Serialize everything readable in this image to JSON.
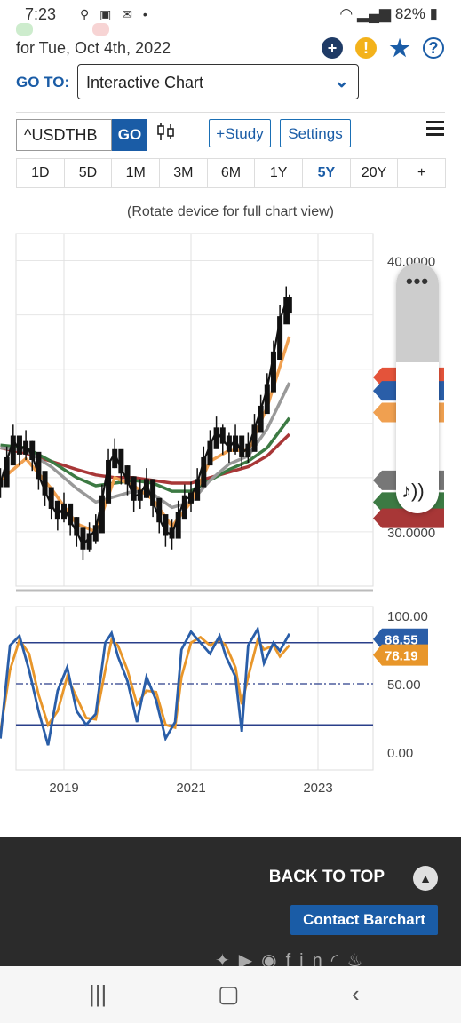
{
  "status_bar": {
    "time": "7:23",
    "battery": "82%"
  },
  "header": {
    "date": "for Tue, Oct 4th, 2022",
    "goto_label": "GO TO:",
    "goto_value": "Interactive Chart"
  },
  "toolbar": {
    "symbol": "^USDTHB",
    "go_label": "GO",
    "study_label": "+Study",
    "settings_label": "Settings"
  },
  "ranges": [
    "1D",
    "5D",
    "1M",
    "3M",
    "6M",
    "1Y",
    "5Y",
    "20Y",
    "+"
  ],
  "active_range": "5Y",
  "rotate_hint": "(Rotate device for full chart view)",
  "chart_data": {
    "type": "line",
    "price_axis": {
      "ticks": [
        "40.0000",
        "30.0000"
      ],
      "ylim": [
        28.0,
        41.0
      ]
    },
    "osc_axis": {
      "ticks": [
        "100.00",
        "50.00",
        "0.00"
      ],
      "ylim": [
        0,
        100
      ]
    },
    "x_ticks": [
      "2019",
      "2021",
      "2023"
    ],
    "osc_labels": [
      "86.55",
      "78.19"
    ],
    "colors": {
      "price": "#111111",
      "ma_orange": "#f0a050",
      "ma_grey": "#999999",
      "ma_green": "#3c7a43",
      "ma_red": "#a83737",
      "osc_blue": "#2a5ea8",
      "osc_orange": "#e8962a"
    },
    "price_series": [
      [
        2018.0,
        31.8
      ],
      [
        2018.1,
        32.6
      ],
      [
        2018.2,
        33.4
      ],
      [
        2018.3,
        33.0
      ],
      [
        2018.4,
        33.2
      ],
      [
        2018.5,
        32.8
      ],
      [
        2018.6,
        32.1
      ],
      [
        2018.7,
        31.5
      ],
      [
        2018.8,
        31.0
      ],
      [
        2018.9,
        30.6
      ],
      [
        2019.0,
        30.9
      ],
      [
        2019.1,
        30.4
      ],
      [
        2019.2,
        30.0
      ],
      [
        2019.3,
        29.5
      ],
      [
        2019.4,
        29.8
      ],
      [
        2019.5,
        30.1
      ],
      [
        2019.6,
        31.2
      ],
      [
        2019.7,
        32.5
      ],
      [
        2019.8,
        32.9
      ],
      [
        2019.9,
        32.3
      ],
      [
        2020.0,
        31.9
      ],
      [
        2020.1,
        31.3
      ],
      [
        2020.2,
        31.4
      ],
      [
        2020.3,
        31.8
      ],
      [
        2020.4,
        31.1
      ],
      [
        2020.5,
        30.5
      ],
      [
        2020.6,
        30.0
      ],
      [
        2020.7,
        29.9
      ],
      [
        2020.8,
        30.6
      ],
      [
        2020.9,
        31.2
      ],
      [
        2021.0,
        31.3
      ],
      [
        2021.1,
        31.8
      ],
      [
        2021.2,
        32.6
      ],
      [
        2021.3,
        33.2
      ],
      [
        2021.4,
        33.7
      ],
      [
        2021.5,
        33.4
      ],
      [
        2021.6,
        33.1
      ],
      [
        2021.7,
        33.4
      ],
      [
        2021.8,
        32.9
      ],
      [
        2021.9,
        33.1
      ],
      [
        2022.0,
        33.8
      ],
      [
        2022.1,
        34.5
      ],
      [
        2022.2,
        35.3
      ],
      [
        2022.3,
        36.5
      ],
      [
        2022.4,
        37.8
      ],
      [
        2022.5,
        38.5
      ],
      [
        2022.55,
        38.2
      ]
    ],
    "ma_orange": [
      [
        2018.0,
        31.9
      ],
      [
        2018.4,
        32.7
      ],
      [
        2018.8,
        31.6
      ],
      [
        2019.2,
        30.3
      ],
      [
        2019.5,
        30.0
      ],
      [
        2019.8,
        32.0
      ],
      [
        2020.1,
        31.7
      ],
      [
        2020.4,
        31.2
      ],
      [
        2020.7,
        30.2
      ],
      [
        2021.0,
        31.1
      ],
      [
        2021.3,
        32.6
      ],
      [
        2021.6,
        33.0
      ],
      [
        2021.9,
        33.0
      ],
      [
        2022.2,
        34.6
      ],
      [
        2022.55,
        37.2
      ]
    ],
    "ma_grey": [
      [
        2018.0,
        33.1
      ],
      [
        2018.4,
        33.0
      ],
      [
        2018.8,
        32.4
      ],
      [
        2019.2,
        31.6
      ],
      [
        2019.5,
        31.1
      ],
      [
        2019.8,
        31.3
      ],
      [
        2020.1,
        31.5
      ],
      [
        2020.4,
        31.4
      ],
      [
        2020.7,
        30.9
      ],
      [
        2021.0,
        31.1
      ],
      [
        2021.3,
        31.9
      ],
      [
        2021.6,
        32.5
      ],
      [
        2021.9,
        32.8
      ],
      [
        2022.2,
        33.8
      ],
      [
        2022.55,
        35.5
      ]
    ],
    "ma_green": [
      [
        2018.0,
        33.2
      ],
      [
        2018.4,
        33.1
      ],
      [
        2018.8,
        32.6
      ],
      [
        2019.2,
        32.0
      ],
      [
        2019.5,
        31.7
      ],
      [
        2019.8,
        31.8
      ],
      [
        2020.1,
        31.9
      ],
      [
        2020.4,
        31.8
      ],
      [
        2020.7,
        31.5
      ],
      [
        2021.0,
        31.5
      ],
      [
        2021.3,
        31.9
      ],
      [
        2021.6,
        32.3
      ],
      [
        2021.9,
        32.6
      ],
      [
        2022.2,
        33.1
      ],
      [
        2022.55,
        34.2
      ]
    ],
    "ma_red": [
      [
        2018.0,
        33.1
      ],
      [
        2018.4,
        32.9
      ],
      [
        2018.8,
        32.6
      ],
      [
        2019.2,
        32.3
      ],
      [
        2019.5,
        32.1
      ],
      [
        2019.8,
        32.0
      ],
      [
        2020.1,
        32.0
      ],
      [
        2020.4,
        31.9
      ],
      [
        2020.7,
        31.8
      ],
      [
        2021.0,
        31.8
      ],
      [
        2021.3,
        32.0
      ],
      [
        2021.6,
        32.2
      ],
      [
        2021.9,
        32.4
      ],
      [
        2022.2,
        32.8
      ],
      [
        2022.55,
        33.6
      ]
    ],
    "osc_blue": [
      [
        2018.0,
        10
      ],
      [
        2018.15,
        78
      ],
      [
        2018.3,
        85
      ],
      [
        2018.45,
        60
      ],
      [
        2018.6,
        30
      ],
      [
        2018.75,
        5
      ],
      [
        2018.9,
        45
      ],
      [
        2019.05,
        62
      ],
      [
        2019.2,
        30
      ],
      [
        2019.35,
        20
      ],
      [
        2019.5,
        28
      ],
      [
        2019.65,
        80
      ],
      [
        2019.75,
        87
      ],
      [
        2019.85,
        70
      ],
      [
        2020.0,
        52
      ],
      [
        2020.15,
        22
      ],
      [
        2020.3,
        55
      ],
      [
        2020.45,
        38
      ],
      [
        2020.6,
        10
      ],
      [
        2020.75,
        22
      ],
      [
        2020.85,
        75
      ],
      [
        2021.0,
        88
      ],
      [
        2021.15,
        80
      ],
      [
        2021.3,
        72
      ],
      [
        2021.45,
        85
      ],
      [
        2021.55,
        70
      ],
      [
        2021.7,
        55
      ],
      [
        2021.8,
        15
      ],
      [
        2021.9,
        78
      ],
      [
        2022.05,
        90
      ],
      [
        2022.15,
        65
      ],
      [
        2022.3,
        80
      ],
      [
        2022.4,
        74
      ],
      [
        2022.55,
        86.55
      ]
    ],
    "osc_orange": [
      [
        2018.0,
        15
      ],
      [
        2018.15,
        60
      ],
      [
        2018.3,
        82
      ],
      [
        2018.45,
        72
      ],
      [
        2018.6,
        42
      ],
      [
        2018.75,
        20
      ],
      [
        2018.9,
        30
      ],
      [
        2019.05,
        55
      ],
      [
        2019.2,
        40
      ],
      [
        2019.35,
        25
      ],
      [
        2019.5,
        24
      ],
      [
        2019.65,
        60
      ],
      [
        2019.75,
        82
      ],
      [
        2019.85,
        78
      ],
      [
        2020.0,
        60
      ],
      [
        2020.15,
        35
      ],
      [
        2020.3,
        45
      ],
      [
        2020.45,
        44
      ],
      [
        2020.6,
        20
      ],
      [
        2020.75,
        18
      ],
      [
        2020.85,
        55
      ],
      [
        2021.0,
        80
      ],
      [
        2021.15,
        84
      ],
      [
        2021.3,
        78
      ],
      [
        2021.45,
        82
      ],
      [
        2021.55,
        78
      ],
      [
        2021.7,
        62
      ],
      [
        2021.8,
        35
      ],
      [
        2021.9,
        55
      ],
      [
        2022.05,
        82
      ],
      [
        2022.15,
        75
      ],
      [
        2022.3,
        78
      ],
      [
        2022.4,
        70
      ],
      [
        2022.55,
        78.19
      ]
    ]
  },
  "footer": {
    "back_to_top": "BACK TO TOP",
    "contact": "Contact Barchart"
  },
  "icons": [
    "plus-circle-icon",
    "alert-icon",
    "star-icon",
    "help-icon",
    "candlestick-icon",
    "menu-icon",
    "more-dots-icon",
    "music-note-icon",
    "chevron-up-icon"
  ]
}
